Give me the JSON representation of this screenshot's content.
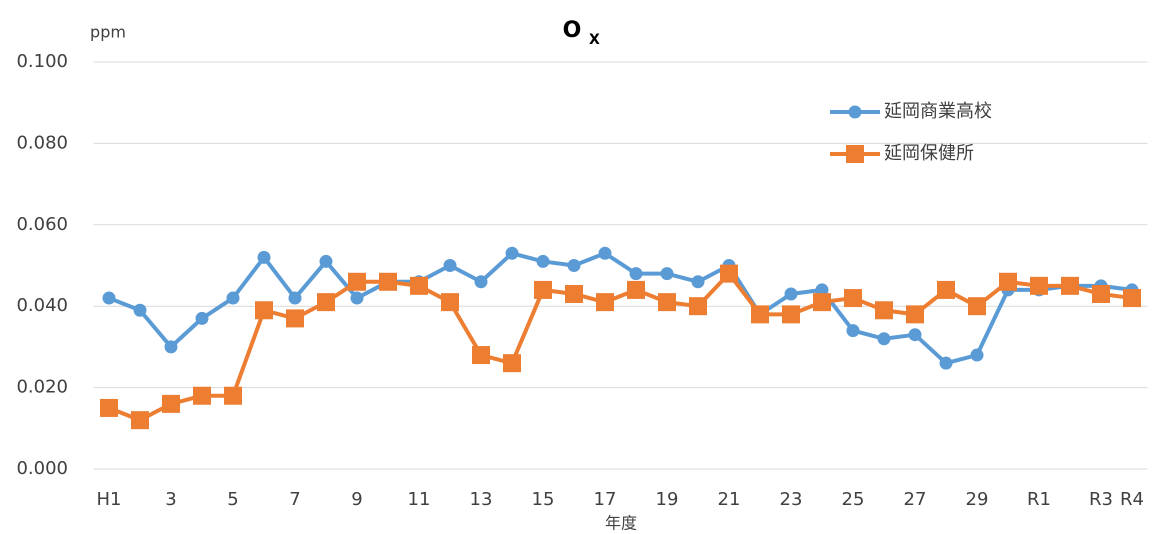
{
  "chart_data": {
    "type": "line",
    "title": "O",
    "title_sub": "X",
    "ylabel": "ppm",
    "xlabel": "年度",
    "categories": [
      "H1",
      null,
      "3",
      null,
      "5",
      null,
      "7",
      null,
      "9",
      null,
      "11",
      null,
      "13",
      null,
      "15",
      null,
      "17",
      null,
      "19",
      null,
      "21",
      null,
      "23",
      null,
      "25",
      null,
      "27",
      null,
      "29",
      null,
      "R1",
      null,
      "R3",
      "R4"
    ],
    "series": [
      {
        "name": "延岡商業高校",
        "color": "#5b9bd5",
        "marker": "circle",
        "values": [
          0.042,
          0.039,
          0.03,
          0.037,
          0.042,
          0.052,
          0.042,
          0.051,
          0.042,
          0.046,
          0.046,
          0.05,
          0.046,
          0.053,
          0.051,
          0.05,
          0.053,
          0.048,
          0.048,
          0.046,
          0.05,
          0.038,
          0.043,
          0.044,
          0.034,
          0.032,
          0.033,
          0.026,
          0.028,
          0.044,
          0.044,
          0.045,
          0.045,
          0.044
        ]
      },
      {
        "name": "延岡保健所",
        "color": "#ed7d31",
        "marker": "square",
        "values": [
          0.015,
          0.012,
          0.016,
          0.018,
          0.018,
          0.039,
          0.037,
          0.041,
          0.046,
          0.046,
          0.045,
          0.041,
          0.028,
          0.026,
          0.044,
          0.043,
          0.041,
          0.044,
          0.041,
          0.04,
          0.048,
          0.038,
          0.038,
          0.041,
          0.042,
          0.039,
          0.038,
          0.044,
          0.04,
          0.046,
          0.045,
          0.045,
          0.043,
          0.042
        ]
      }
    ],
    "ylim": [
      0,
      0.1
    ],
    "yticks": [
      {
        "value": 0,
        "label": "0.000"
      },
      {
        "value": 0.02,
        "label": "0.020"
      },
      {
        "value": 0.04,
        "label": "0.040"
      },
      {
        "value": 0.06,
        "label": "0.060"
      },
      {
        "value": 0.08,
        "label": "0.080"
      },
      {
        "value": 0.1,
        "label": "0.100"
      }
    ],
    "grid": true,
    "legend": "upper right"
  }
}
